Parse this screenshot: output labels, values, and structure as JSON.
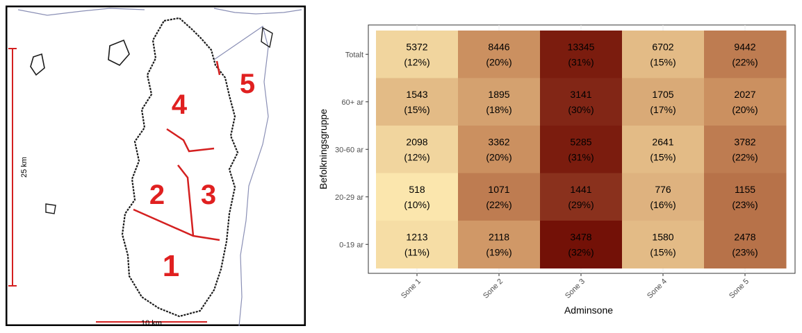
{
  "map": {
    "zones": [
      {
        "label": "1",
        "name": "Sone 1"
      },
      {
        "label": "2",
        "name": "Sone 2"
      },
      {
        "label": "3",
        "name": "Sone 3"
      },
      {
        "label": "4",
        "name": "Sone 4"
      },
      {
        "label": "5",
        "name": "Sone 5"
      }
    ],
    "scale_vertical_label": "25 km",
    "scale_horizontal_label": "10 km",
    "zone_label_color": "#e02020"
  },
  "chart_data": {
    "type": "heatmap",
    "xlabel": "Adminsone",
    "ylabel": "Befolkningsgruppe",
    "x_categories": [
      "Sone 1",
      "Sone 2",
      "Sone 3",
      "Sone 4",
      "Sone 5"
    ],
    "y_categories": [
      "Totalt",
      "60+ ar",
      "30-60 ar",
      "20-29 ar",
      "0-19 ar"
    ],
    "values": [
      [
        5372,
        8446,
        13345,
        6702,
        9442
      ],
      [
        1543,
        1895,
        3141,
        1705,
        2027
      ],
      [
        2098,
        3362,
        5285,
        2641,
        3782
      ],
      [
        518,
        1071,
        1441,
        776,
        1155
      ],
      [
        1213,
        2118,
        3478,
        1580,
        2478
      ]
    ],
    "percent_labels": [
      [
        "(12%)",
        "(20%)",
        "(31%)",
        "(15%)",
        "(22%)"
      ],
      [
        "(15%)",
        "(18%)",
        "(30%)",
        "(17%)",
        "(20%)"
      ],
      [
        "(12%)",
        "(20%)",
        "(31%)",
        "(15%)",
        "(22%)"
      ],
      [
        "(10%)",
        "(22%)",
        "(29%)",
        "(16%)",
        "(23%)"
      ],
      [
        "(11%)",
        "(19%)",
        "(32%)",
        "(15%)",
        "(23%)"
      ]
    ],
    "percent_values": [
      [
        12,
        20,
        31,
        15,
        22
      ],
      [
        15,
        18,
        30,
        17,
        20
      ],
      [
        12,
        20,
        31,
        15,
        22
      ],
      [
        10,
        22,
        29,
        16,
        23
      ],
      [
        11,
        19,
        32,
        15,
        23
      ]
    ],
    "color_scale": {
      "low": "#fbe6ad",
      "mid": "#c68758",
      "high": "#731107",
      "min": 10,
      "max": 32
    },
    "grid": true,
    "legend": "none"
  }
}
